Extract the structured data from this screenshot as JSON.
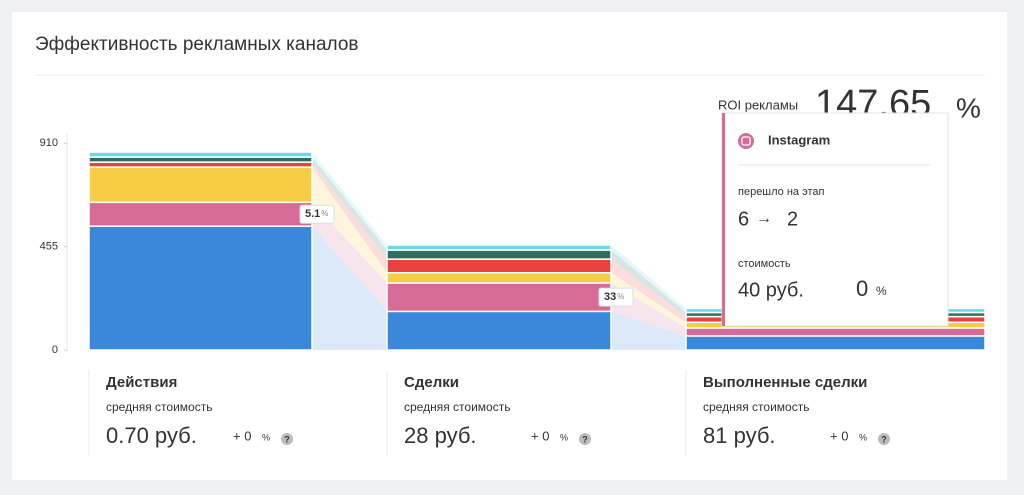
{
  "chart_data": {
    "type": "funnel",
    "title": "Эффективность рекламных каналов",
    "categories": [
      "Действия",
      "Сделки",
      "Выполненные сделки"
    ],
    "series": [
      {
        "color": "#3b87d9",
        "values": [
          545,
          170,
          62
        ]
      },
      {
        "color": "#d66b97",
        "values": [
          105,
          125,
          35
        ]
      },
      {
        "color": "#f6cd45",
        "values": [
          155,
          45,
          25
        ]
      },
      {
        "color": "#e8413e",
        "values": [
          22,
          60,
          25
        ]
      },
      {
        "color": "#2d6e5e",
        "values": [
          22,
          40,
          18
        ]
      },
      {
        "color": "#6ad8e8",
        "values": [
          22,
          22,
          18
        ]
      }
    ],
    "ylim": [
      0,
      955
    ],
    "yticks": [
      0,
      455,
      910
    ],
    "conversions": [
      5.1,
      33
    ],
    "conversion_unit": "%"
  },
  "stage_stats": [
    {
      "label": "средняя стоимость",
      "cost": "0.70 руб.",
      "change": "+ 0",
      "unit": "%"
    },
    {
      "label": "средняя стоимость",
      "cost": "28 руб.",
      "change": "+ 0",
      "unit": "%"
    },
    {
      "label": "средняя стоимость",
      "cost": "81 руб.",
      "change": "+ 0",
      "unit": "%"
    }
  ],
  "roi": {
    "label": "ROI рекламы",
    "value": "147.65",
    "unit": "%"
  },
  "tooltip": {
    "channel": "Instagram",
    "transition_label": "перешло на этап",
    "from": 6,
    "to": 2,
    "cost_label": "стоимость",
    "cost": "40 руб.",
    "change": 0,
    "unit": "%"
  }
}
